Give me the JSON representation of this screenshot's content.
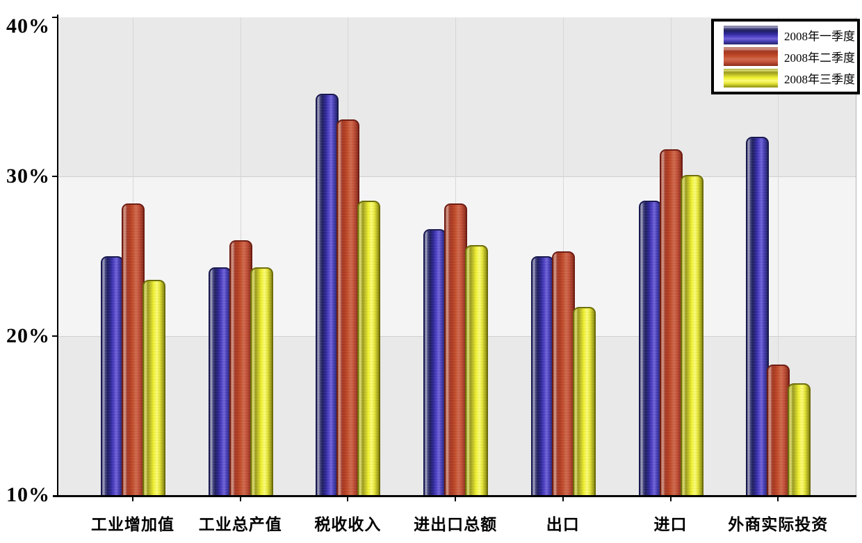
{
  "chart_data": {
    "type": "bar",
    "title": "",
    "xlabel": "",
    "ylabel": "",
    "categories": [
      "工业增加值",
      "工业总产值",
      "税收收入",
      "进出口总额",
      "出口",
      "进口",
      "外商实际投资"
    ],
    "series": [
      {
        "name": "2008年一季度",
        "key": "q1",
        "color": "#3b35b4",
        "values": [
          25.0,
          24.3,
          35.2,
          26.7,
          25.0,
          28.5,
          32.5
        ]
      },
      {
        "name": "2008年二季度",
        "key": "q2",
        "color": "#c4502e",
        "values": [
          28.3,
          26.0,
          33.6,
          28.3,
          25.3,
          31.7,
          18.2
        ]
      },
      {
        "name": "2008年三季度",
        "key": "q3",
        "color": "#f0f030",
        "values": [
          23.5,
          24.3,
          28.5,
          25.7,
          21.8,
          30.1,
          17.0
        ]
      }
    ],
    "ylim": [
      10,
      40
    ],
    "y_ticks": [
      "10%",
      "20%",
      "30%",
      "40%"
    ],
    "y_tick_values": [
      10,
      20,
      30,
      40
    ],
    "grid": "alternating horizontal bands with faint lines at 20% and 30%, faint vertical line at each category",
    "legend_position": "top-right"
  },
  "colors": {
    "band_dark": "#e9e9e9",
    "band_light": "#f4f4f4",
    "axis": "#000000",
    "gridline": "#d0d0d0",
    "legend_border": "#000000",
    "background": "#ffffff"
  }
}
